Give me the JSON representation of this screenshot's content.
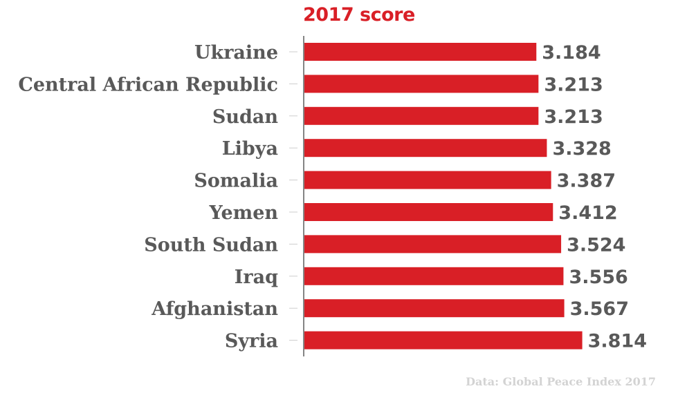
{
  "chart_data": {
    "type": "bar",
    "orientation": "horizontal",
    "title": "2017 score",
    "categories": [
      "Ukraine",
      "Central African Republic",
      "Sudan",
      "Libya",
      "Somalia",
      "Yemen",
      "South Sudan",
      "Iraq",
      "Afghanistan",
      "Syria"
    ],
    "values": [
      3.184,
      3.213,
      3.213,
      3.328,
      3.387,
      3.412,
      3.524,
      3.556,
      3.567,
      3.814
    ],
    "value_labels": [
      "3.184",
      "3.213",
      "3.213",
      "3.328",
      "3.387",
      "3.412",
      "3.524",
      "3.556",
      "3.567",
      "3.814"
    ],
    "xlim": [
      0,
      4.1
    ],
    "xlabel": "",
    "ylabel": "",
    "grid": false,
    "legend": "none",
    "bar_color": "#d91f26",
    "label_color": "#595959",
    "source": "Data: Global Peace Index 2017"
  }
}
